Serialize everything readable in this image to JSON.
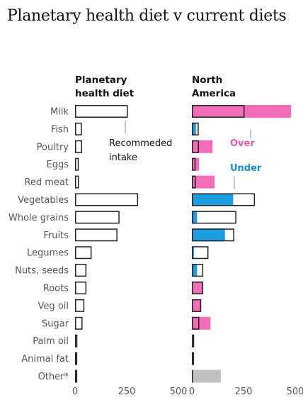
{
  "title": "Planetary health diet v current diets",
  "chart_data": {
    "type": "bar",
    "categories": [
      "Milk",
      "Fish",
      "Poultry",
      "Eggs",
      "Red meat",
      "Vegetables",
      "Whole grains",
      "Fruits",
      "Legumes",
      "Nuts, seeds",
      "Roots",
      "Veg oil",
      "Sugar",
      "Palm oil",
      "Animal fat",
      "Other*"
    ],
    "series": [
      {
        "name": "Planetary health diet",
        "values": [
          250,
          28,
          29,
          13,
          14,
          300,
          210,
          200,
          75,
          50,
          50,
          40,
          31,
          6,
          5,
          0
        ]
      },
      {
        "name": "North America",
        "values": [
          480,
          20,
          100,
          35,
          110,
          200,
          25,
          160,
          10,
          25,
          50,
          45,
          90,
          4,
          5,
          140
        ]
      }
    ],
    "panels": [
      {
        "title_line1": "Planetary",
        "title_line2": "health diet",
        "series": 0
      },
      {
        "title_line1": "North",
        "title_line2": "America",
        "series": 1
      }
    ],
    "xlim": [
      0,
      500
    ],
    "xticks": [
      "0",
      "250",
      "500"
    ],
    "annotations": {
      "recommended_line1": "Recommeded",
      "recommended_line2": "intake",
      "over": "Over",
      "under": "Under"
    },
    "colors": {
      "outline": "#222222",
      "over": "#f26db7",
      "under": "#1a9de1",
      "other": "#c0c0c0"
    }
  }
}
